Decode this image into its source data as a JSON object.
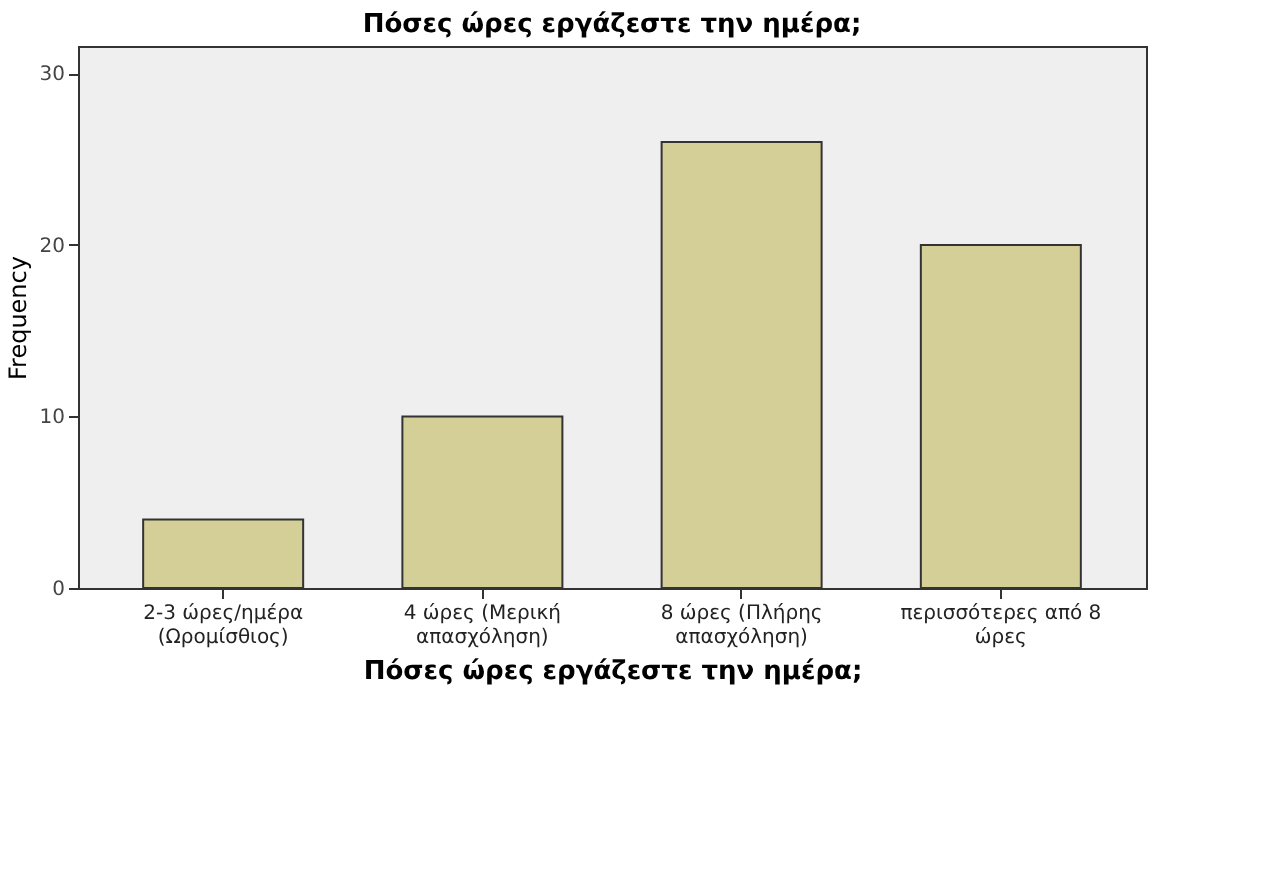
{
  "chart_data": {
    "type": "bar",
    "title": "Πόσες ώρες εργάζεστε την ημέρα;",
    "xlabel": "Πόσες ώρες εργάζεστε την ημέρα;",
    "ylabel": "Frequency",
    "categories": [
      "2-3 ώρες/ημέρα\n(Ωρομίσθιος)",
      "4 ώρες (Μερική\nαπασχόληση)",
      "8 ώρες (Πλήρης\nαπασχόληση)",
      "περισσότερες από 8\nώρες"
    ],
    "values": [
      4,
      10,
      26,
      20
    ],
    "color": "#d3cf97",
    "ylim": [
      0,
      31.6
    ],
    "yticks": [
      0,
      10,
      20,
      30
    ],
    "grid": false
  }
}
